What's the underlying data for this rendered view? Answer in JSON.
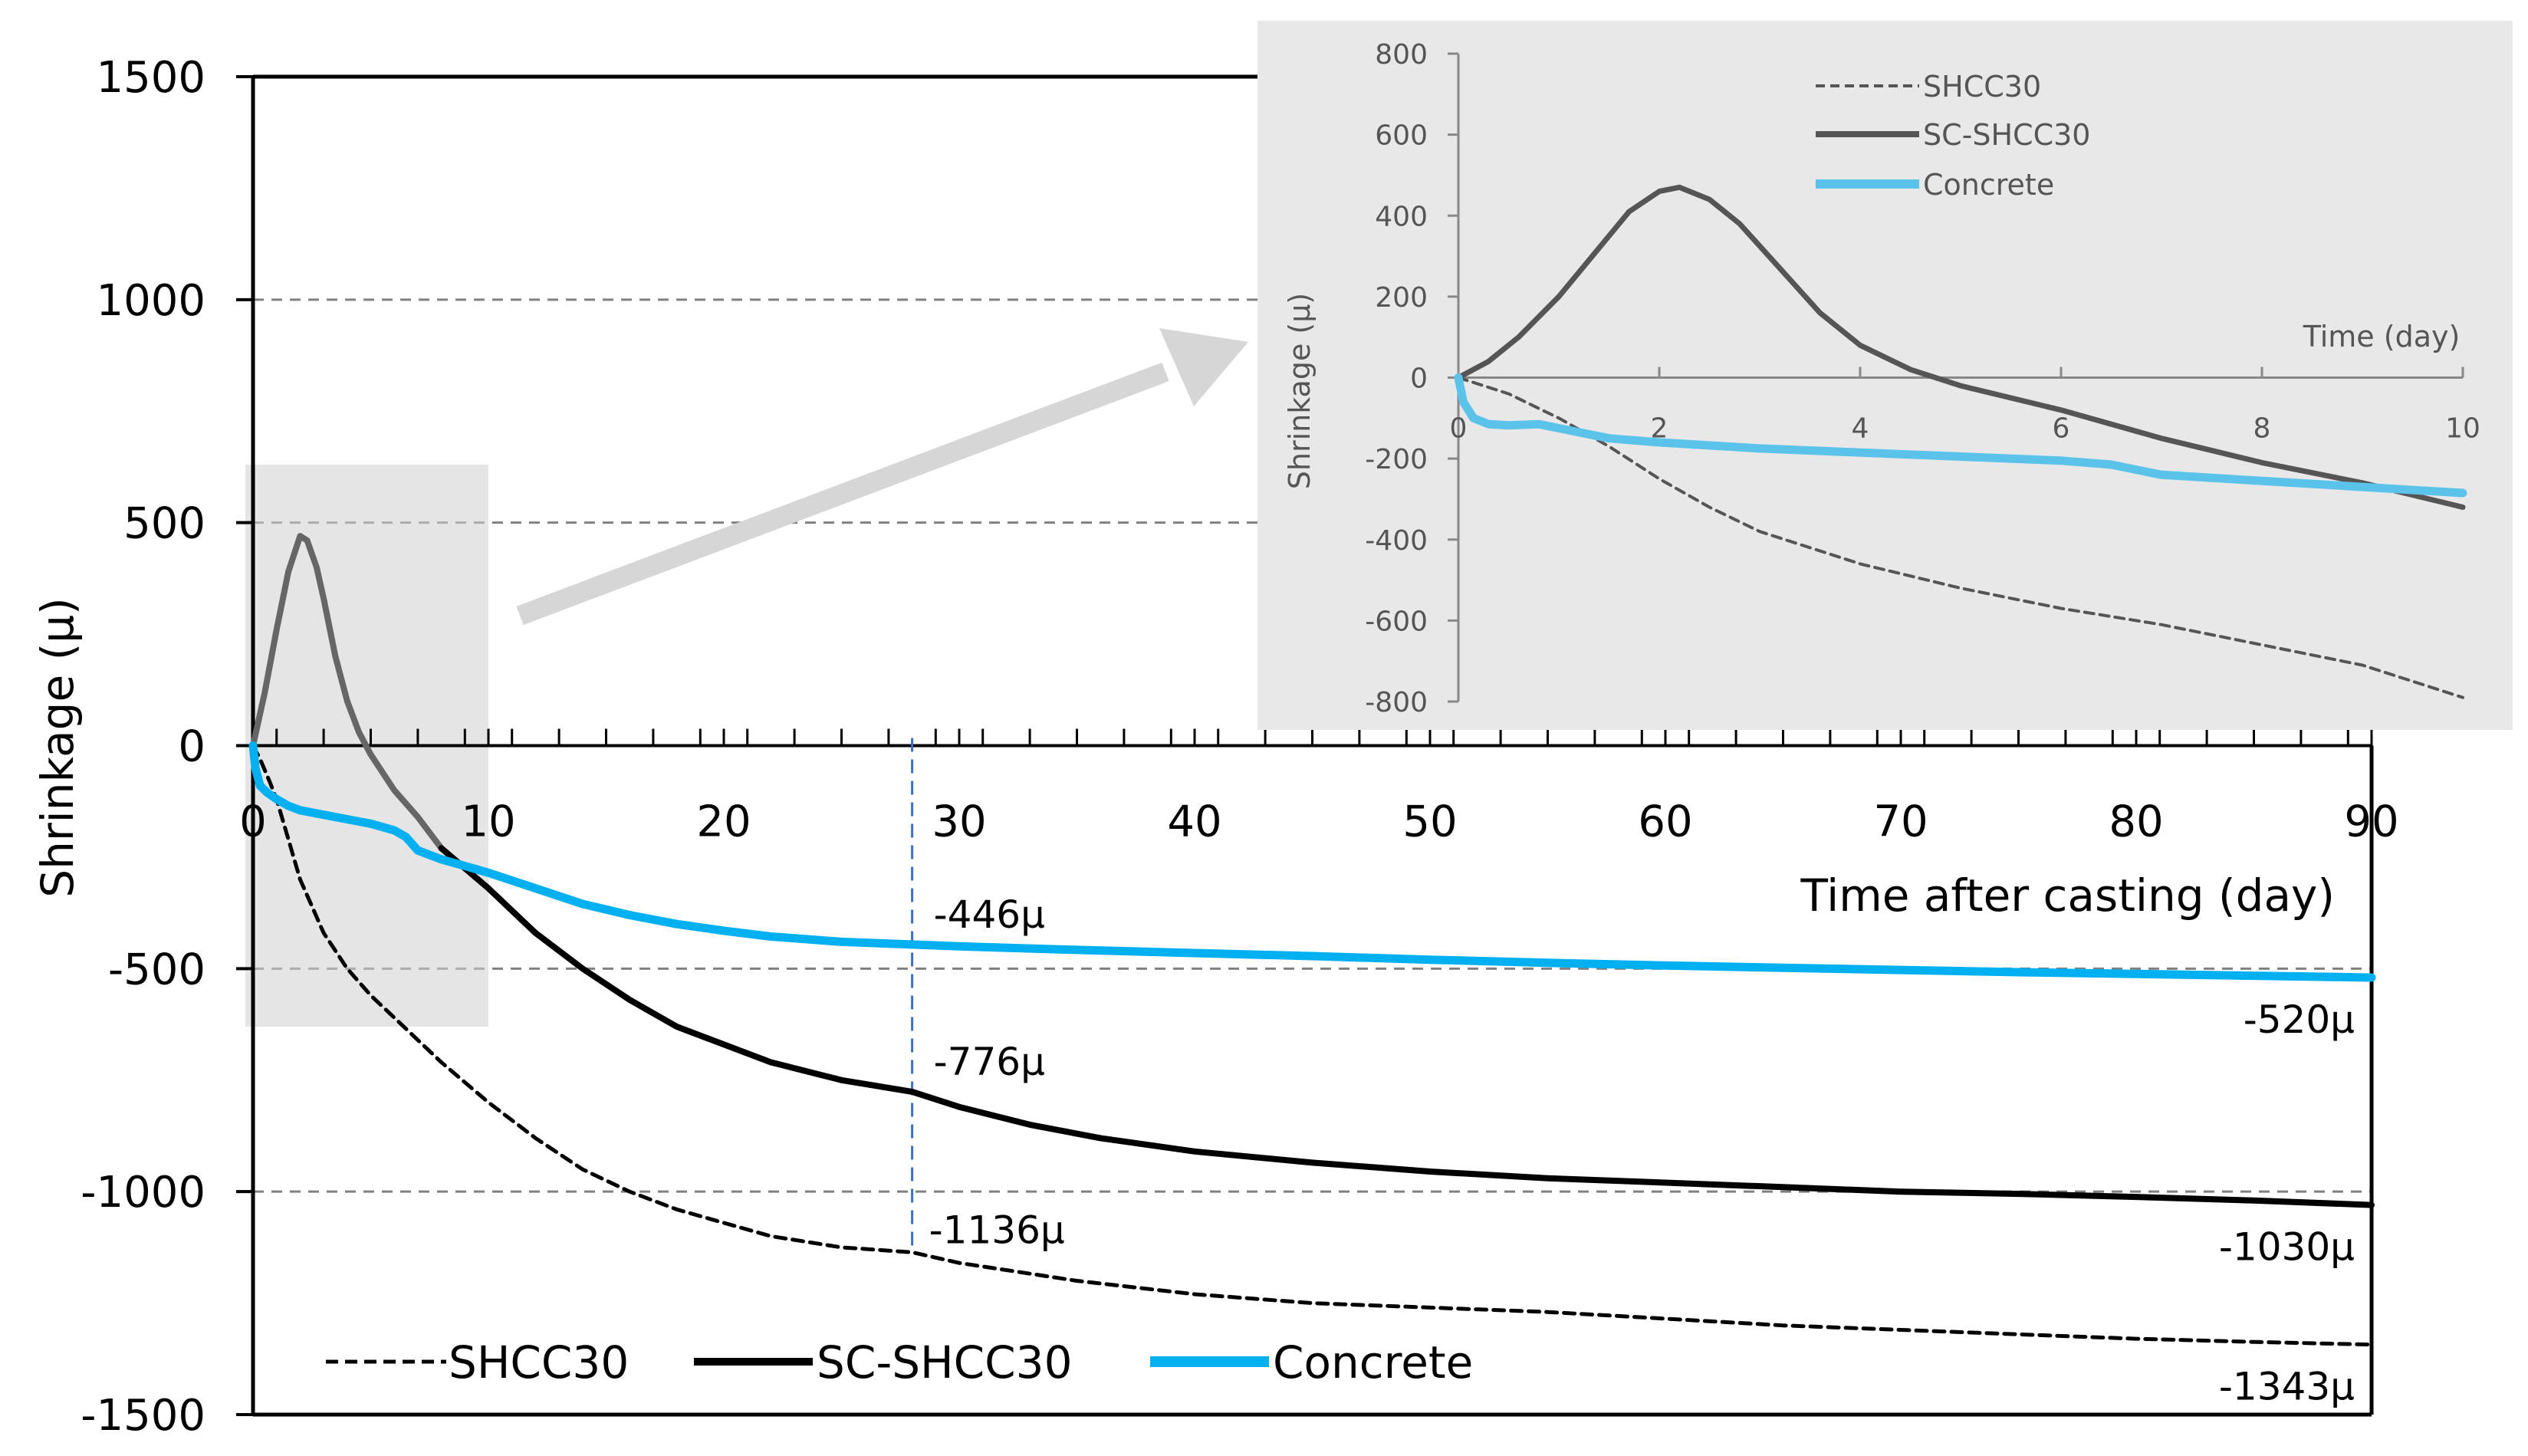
{
  "chart_data": [
    {
      "id": "main",
      "type": "line",
      "xlabel": "Time after casting (day)",
      "ylabel": "Shrinkage (μ)",
      "xlim": [
        0,
        90
      ],
      "ylim": [
        -1500,
        1500
      ],
      "xticks": [
        0,
        10,
        20,
        30,
        40,
        50,
        60,
        70,
        80,
        90
      ],
      "yticks": [
        1500,
        1000,
        500,
        0,
        -500,
        -1000,
        -1500
      ],
      "grid": "horizontal dashed at ±500 and ±1000",
      "legend": "bottom-left",
      "colors": {
        "SHCC30": "#000000",
        "SC-SHCC30": "#000000",
        "Concrete": "#00b0f0",
        "SC-SHCC30-early": "#666666"
      },
      "series": [
        {
          "name": "SHCC30",
          "style": "dashed",
          "points": [
            [
              0,
              0
            ],
            [
              0.3,
              -30
            ],
            [
              0.7,
              -80
            ],
            [
              1,
              -120
            ],
            [
              1.5,
              -210
            ],
            [
              2,
              -300
            ],
            [
              2.5,
              -360
            ],
            [
              3,
              -420
            ],
            [
              4,
              -500
            ],
            [
              5,
              -560
            ],
            [
              6,
              -610
            ],
            [
              8,
              -710
            ],
            [
              10,
              -800
            ],
            [
              12,
              -880
            ],
            [
              14,
              -950
            ],
            [
              16,
              -1000
            ],
            [
              18,
              -1040
            ],
            [
              20,
              -1070
            ],
            [
              22,
              -1100
            ],
            [
              25,
              -1125
            ],
            [
              28,
              -1136
            ],
            [
              30,
              -1160
            ],
            [
              35,
              -1200
            ],
            [
              40,
              -1230
            ],
            [
              45,
              -1250
            ],
            [
              50,
              -1260
            ],
            [
              55,
              -1270
            ],
            [
              60,
              -1285
            ],
            [
              65,
              -1300
            ],
            [
              70,
              -1310
            ],
            [
              75,
              -1320
            ],
            [
              80,
              -1330
            ],
            [
              85,
              -1337
            ],
            [
              90,
              -1343
            ]
          ]
        },
        {
          "name": "SC-SHCC30",
          "style": "solid",
          "points": [
            [
              0,
              0
            ],
            [
              0.5,
              120
            ],
            [
              1,
              260
            ],
            [
              1.5,
              390
            ],
            [
              2,
              470
            ],
            [
              2.3,
              460
            ],
            [
              2.7,
              400
            ],
            [
              3,
              330
            ],
            [
              3.5,
              200
            ],
            [
              4,
              100
            ],
            [
              4.5,
              30
            ],
            [
              5,
              -20
            ],
            [
              6,
              -100
            ],
            [
              7,
              -160
            ],
            [
              8,
              -230
            ],
            [
              10,
              -320
            ],
            [
              12,
              -420
            ],
            [
              14,
              -500
            ],
            [
              16,
              -570
            ],
            [
              18,
              -630
            ],
            [
              20,
              -670
            ],
            [
              22,
              -710
            ],
            [
              25,
              -750
            ],
            [
              28,
              -776
            ],
            [
              30,
              -810
            ],
            [
              33,
              -850
            ],
            [
              36,
              -880
            ],
            [
              40,
              -910
            ],
            [
              45,
              -935
            ],
            [
              50,
              -955
            ],
            [
              55,
              -970
            ],
            [
              60,
              -980
            ],
            [
              65,
              -990
            ],
            [
              70,
              -1000
            ],
            [
              75,
              -1005
            ],
            [
              80,
              -1012
            ],
            [
              85,
              -1020
            ],
            [
              90,
              -1030
            ]
          ]
        },
        {
          "name": "Concrete",
          "style": "solid",
          "points": [
            [
              0,
              0
            ],
            [
              0.1,
              -50
            ],
            [
              0.3,
              -90
            ],
            [
              0.6,
              -105
            ],
            [
              1,
              -120
            ],
            [
              1.5,
              -135
            ],
            [
              2,
              -145
            ],
            [
              3,
              -155
            ],
            [
              4,
              -165
            ],
            [
              5,
              -175
            ],
            [
              6,
              -190
            ],
            [
              6.5,
              -205
            ],
            [
              7,
              -235
            ],
            [
              8,
              -255
            ],
            [
              9,
              -270
            ],
            [
              10,
              -285
            ],
            [
              12,
              -320
            ],
            [
              14,
              -355
            ],
            [
              16,
              -380
            ],
            [
              18,
              -400
            ],
            [
              20,
              -415
            ],
            [
              22,
              -428
            ],
            [
              25,
              -440
            ],
            [
              28,
              -446
            ],
            [
              30,
              -450
            ],
            [
              35,
              -458
            ],
            [
              40,
              -465
            ],
            [
              45,
              -472
            ],
            [
              50,
              -480
            ],
            [
              55,
              -487
            ],
            [
              60,
              -493
            ],
            [
              65,
              -498
            ],
            [
              70,
              -503
            ],
            [
              75,
              -508
            ],
            [
              80,
              -512
            ],
            [
              85,
              -516
            ],
            [
              90,
              -520
            ]
          ]
        }
      ],
      "annotations": [
        {
          "text": "-446μ",
          "x": 28,
          "y": -446
        },
        {
          "text": "-776μ",
          "x": 28,
          "y": -776
        },
        {
          "text": "-1136μ",
          "x": 28,
          "y": -1136
        },
        {
          "text": "-520μ",
          "x": 90,
          "y": -520
        },
        {
          "text": "-1030μ",
          "x": 90,
          "y": -1030
        },
        {
          "text": "-1343μ",
          "x": 90,
          "y": -1343
        }
      ],
      "marker_line_x": 28,
      "zoom_region": {
        "x": [
          0,
          10
        ],
        "y": [
          -630,
          630
        ]
      }
    },
    {
      "id": "inset",
      "type": "line",
      "xlabel": "Time (day)",
      "ylabel": "Shrinkage (μ)",
      "xlim": [
        0,
        10
      ],
      "ylim": [
        -800,
        800
      ],
      "xticks": [
        0,
        2,
        4,
        6,
        8,
        10
      ],
      "yticks": [
        800,
        600,
        400,
        200,
        0,
        -200,
        -400,
        -600,
        -800
      ],
      "grid": "off",
      "legend": "top-left",
      "colors": {
        "SHCC30": "#555555",
        "SC-SHCC30": "#555555",
        "Concrete": "#5bc3ea"
      },
      "series": [
        {
          "name": "SHCC30",
          "style": "dashed",
          "points": [
            [
              0,
              0
            ],
            [
              0.5,
              -40
            ],
            [
              1,
              -100
            ],
            [
              1.5,
              -170
            ],
            [
              2,
              -250
            ],
            [
              2.5,
              -320
            ],
            [
              3,
              -380
            ],
            [
              3.5,
              -420
            ],
            [
              4,
              -460
            ],
            [
              5,
              -520
            ],
            [
              6,
              -570
            ],
            [
              7,
              -610
            ],
            [
              8,
              -660
            ],
            [
              9,
              -710
            ],
            [
              10,
              -790
            ]
          ]
        },
        {
          "name": "SC-SHCC30",
          "style": "solid",
          "points": [
            [
              0,
              0
            ],
            [
              0.3,
              40
            ],
            [
              0.6,
              100
            ],
            [
              1,
              200
            ],
            [
              1.4,
              320
            ],
            [
              1.7,
              410
            ],
            [
              2,
              460
            ],
            [
              2.2,
              470
            ],
            [
              2.5,
              440
            ],
            [
              2.8,
              380
            ],
            [
              3.2,
              270
            ],
            [
              3.6,
              160
            ],
            [
              4,
              80
            ],
            [
              4.5,
              20
            ],
            [
              5,
              -20
            ],
            [
              6,
              -80
            ],
            [
              7,
              -150
            ],
            [
              8,
              -210
            ],
            [
              9,
              -260
            ],
            [
              10,
              -320
            ]
          ]
        },
        {
          "name": "Concrete",
          "style": "solid",
          "points": [
            [
              0,
              0
            ],
            [
              0.05,
              -60
            ],
            [
              0.15,
              -100
            ],
            [
              0.3,
              -115
            ],
            [
              0.5,
              -118
            ],
            [
              0.8,
              -115
            ],
            [
              1,
              -125
            ],
            [
              1.5,
              -150
            ],
            [
              2,
              -160
            ],
            [
              3,
              -175
            ],
            [
              4,
              -185
            ],
            [
              5,
              -195
            ],
            [
              6,
              -205
            ],
            [
              6.5,
              -215
            ],
            [
              7,
              -240
            ],
            [
              8,
              -255
            ],
            [
              9,
              -270
            ],
            [
              10,
              -285
            ]
          ]
        }
      ]
    }
  ]
}
